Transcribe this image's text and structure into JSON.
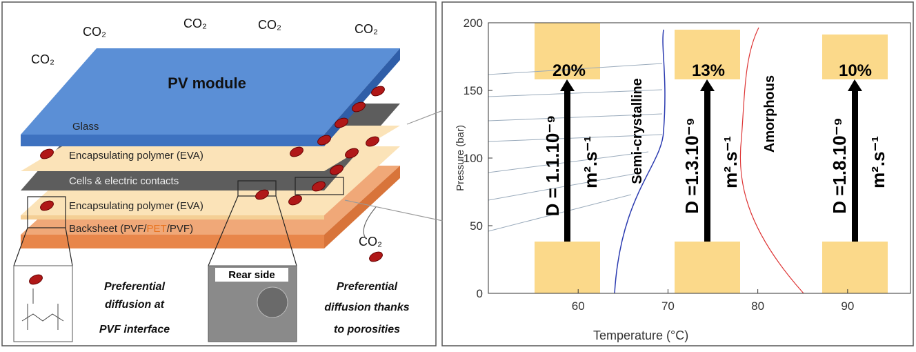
{
  "left_panel": {
    "co2_labels": [
      "CO₂",
      "CO₂",
      "CO₂",
      "CO₂",
      "CO₂",
      "CO₂"
    ],
    "module_title": "PV module",
    "layers": {
      "glass": "Glass",
      "eva_top": "Encapsulating polymer (EVA)",
      "cells": "Cells & electric contacts",
      "eva_bottom": "Encapsulating polymer (EVA)",
      "backsheet": [
        "Backsheet (PVF/",
        "PET",
        "/PVF)"
      ]
    },
    "inset_left_text": [
      "Preferential",
      "diffusion at",
      "PVF interface"
    ],
    "inset_middle_title": "Rear side",
    "inset_right_text": [
      "Preferential",
      "diffusion thanks",
      "to porosities"
    ]
  },
  "right_panel": {
    "x_axis": {
      "label": "Temperature (°C)",
      "lim": [
        50,
        97
      ],
      "ticks": [
        60,
        70,
        80,
        90
      ]
    },
    "y_axis": {
      "label": "Pressure (bar)",
      "lim": [
        0,
        200
      ],
      "ticks": [
        0,
        50,
        100,
        150,
        200
      ]
    },
    "percentages": [
      "20%",
      "13%",
      "10%"
    ],
    "diffusion": [
      {
        "d": "D = 1.1.10⁻⁹",
        "unit": "m².s⁻¹"
      },
      {
        "d": "D =1.3.10⁻⁹",
        "unit": "m².s⁻¹"
      },
      {
        "d": "D =1.8.10⁻⁹",
        "unit": "m².s⁻¹"
      }
    ],
    "curve_labels": [
      "Semi-crystalline",
      "Amorphous"
    ]
  }
}
